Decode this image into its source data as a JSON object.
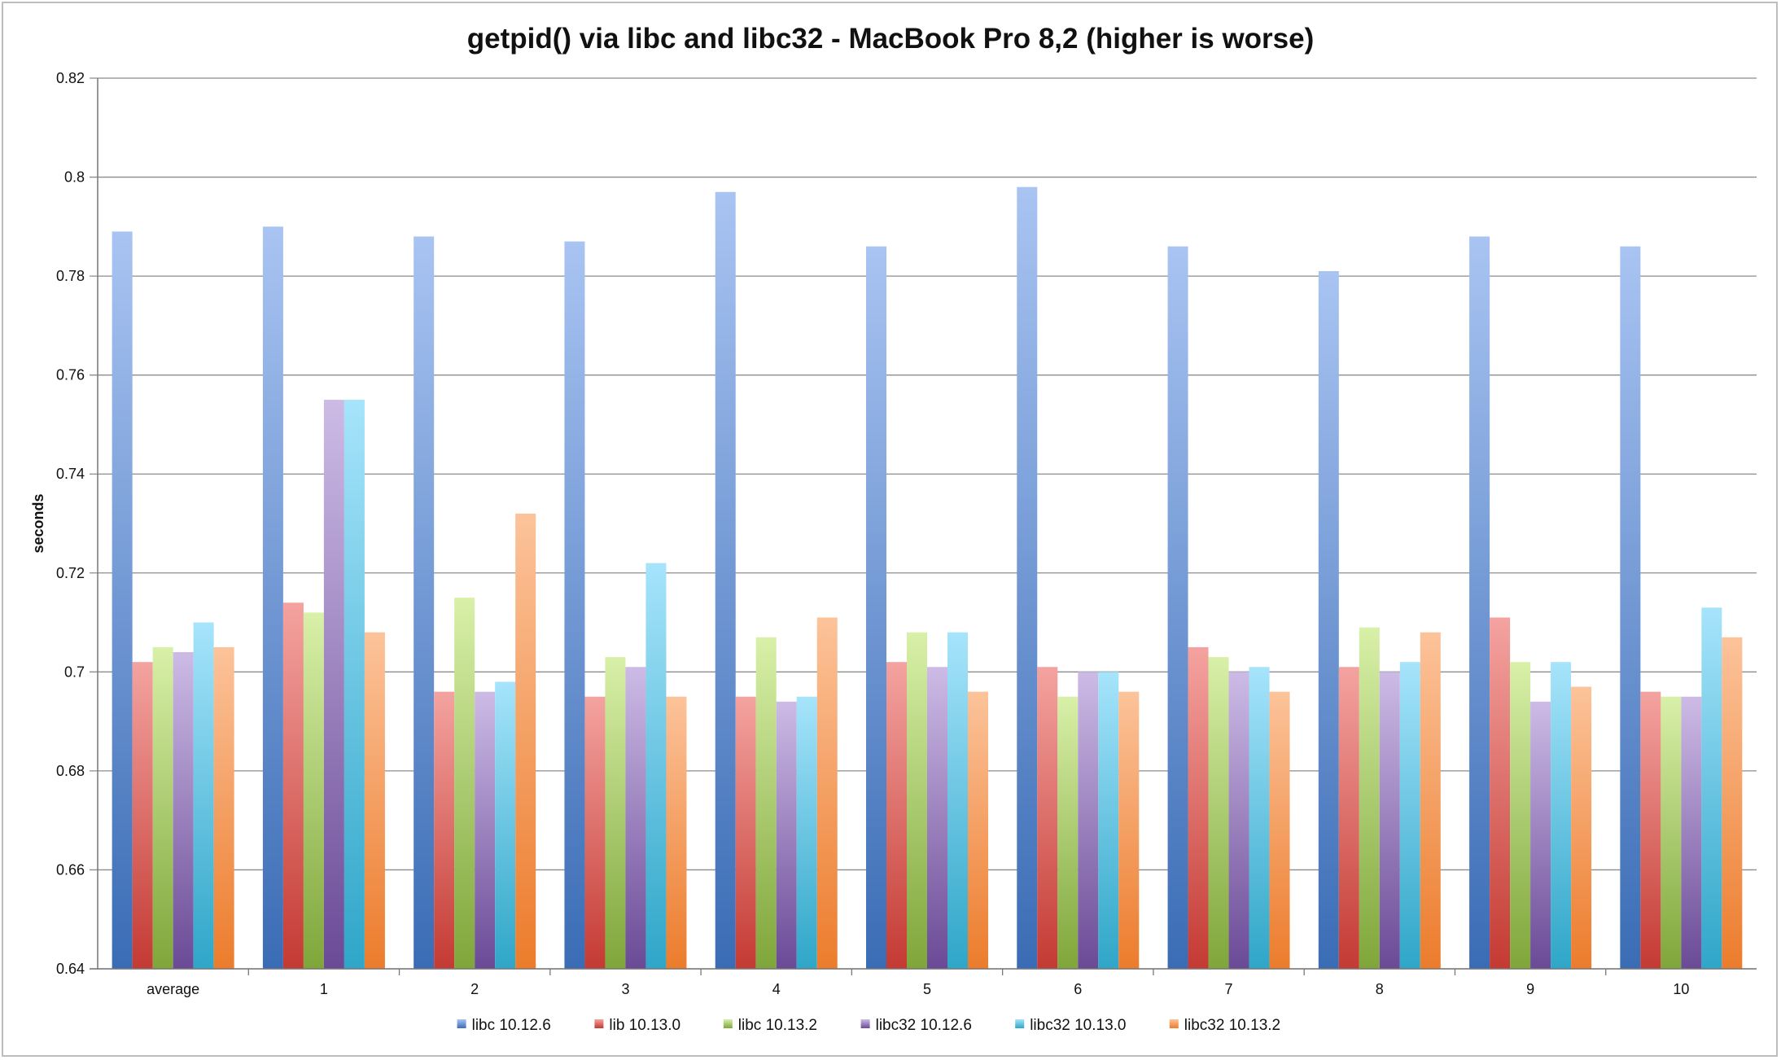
{
  "chart_data": {
    "type": "bar",
    "title": "getpid() via libc and libc32 - MacBook Pro 8,2 (higher is worse)",
    "xlabel": "",
    "ylabel": "seconds",
    "ylim": [
      0.64,
      0.82
    ],
    "yticks": [
      "0.64",
      "0.66",
      "0.68",
      "0.7",
      "0.72",
      "0.74",
      "0.76",
      "0.78",
      "0.8",
      "0.82"
    ],
    "grid": true,
    "legend_position": "bottom",
    "categories": [
      "average",
      "1",
      "2",
      "3",
      "4",
      "5",
      "6",
      "7",
      "8",
      "9",
      "10"
    ],
    "series": [
      {
        "name": "libc 10.12.6",
        "color_top": "#a9c4f2",
        "color_bottom": "#3a6cb5",
        "values": [
          0.789,
          0.79,
          0.788,
          0.787,
          0.797,
          0.786,
          0.798,
          0.786,
          0.781,
          0.788,
          0.786
        ]
      },
      {
        "name": "lib 10.13.0",
        "color_top": "#f4a3a0",
        "color_bottom": "#c43a33",
        "values": [
          0.702,
          0.714,
          0.696,
          0.695,
          0.695,
          0.702,
          0.701,
          0.705,
          0.701,
          0.711,
          0.696
        ]
      },
      {
        "name": "libc 10.13.2",
        "color_top": "#d8f0a8",
        "color_bottom": "#7fa63a",
        "values": [
          0.705,
          0.712,
          0.715,
          0.703,
          0.707,
          0.708,
          0.695,
          0.703,
          0.709,
          0.702,
          0.695
        ]
      },
      {
        "name": "libc32 10.12.6",
        "color_top": "#cdbbe6",
        "color_bottom": "#6a4a96",
        "values": [
          0.704,
          0.755,
          0.696,
          0.701,
          0.694,
          0.701,
          0.7,
          0.7,
          0.7,
          0.694,
          0.695
        ]
      },
      {
        "name": "libc32 10.13.0",
        "color_top": "#a6e4fb",
        "color_bottom": "#2fa6c8",
        "values": [
          0.71,
          0.755,
          0.698,
          0.722,
          0.695,
          0.708,
          0.7,
          0.701,
          0.702,
          0.702,
          0.713
        ]
      },
      {
        "name": "libc32 10.13.2",
        "color_top": "#fcc39a",
        "color_bottom": "#ec7c2c",
        "values": [
          0.705,
          0.708,
          0.732,
          0.695,
          0.711,
          0.696,
          0.696,
          0.696,
          0.708,
          0.697,
          0.707
        ]
      }
    ]
  }
}
